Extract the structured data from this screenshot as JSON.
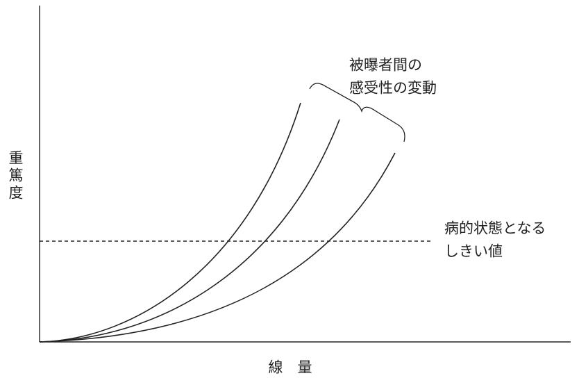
{
  "y_axis_label": "重篤度",
  "x_axis_label": "線　量",
  "annotations": {
    "variation": [
      "被曝者間の",
      "感受性の変動"
    ],
    "threshold": [
      "病的状態となる",
      "しきい値"
    ]
  }
}
